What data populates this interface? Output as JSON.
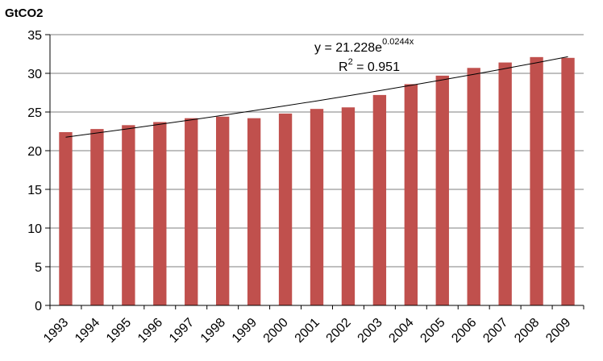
{
  "chart_data": {
    "type": "bar",
    "ylabel": "GtCO2",
    "categories": [
      "1993",
      "1994",
      "1995",
      "1996",
      "1997",
      "1998",
      "1999",
      "2000",
      "2001",
      "2002",
      "2003",
      "2004",
      "2005",
      "2006",
      "2007",
      "2008",
      "2009"
    ],
    "values": [
      22.4,
      22.8,
      23.3,
      23.7,
      24.2,
      24.4,
      24.2,
      24.8,
      25.4,
      25.6,
      27.2,
      28.6,
      29.7,
      30.7,
      31.4,
      32.1,
      32.0
    ],
    "ylim": [
      0,
      35
    ],
    "yticks": [
      "0",
      "5",
      "10",
      "15",
      "20",
      "25",
      "30",
      "35"
    ],
    "bar_color": "#C0504D",
    "trendline": {
      "type": "exponential",
      "a": 21.228,
      "b": 0.0244,
      "color": "#000000",
      "equation_prefix": "y = 21.228e",
      "equation_exponent": "0.0244x",
      "r2_prefix": "R",
      "r2_sup": "2",
      "r2_suffix": " = 0.951"
    }
  }
}
